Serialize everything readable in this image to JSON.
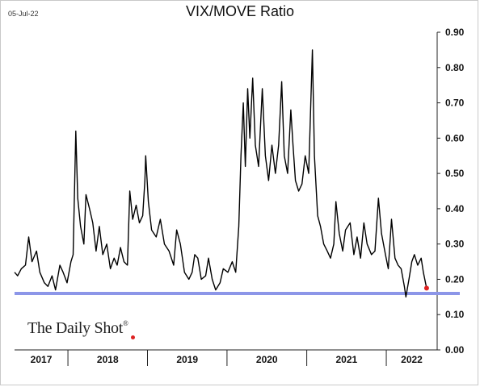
{
  "date_stamp": "05-Jul-22",
  "brand": {
    "text": "The Daily Shot",
    "mark": "®"
  },
  "chart_data": {
    "type": "line",
    "title": "VIX/MOVE Ratio",
    "xlabel": "",
    "ylabel": "",
    "ylim": [
      0,
      0.9
    ],
    "yticks": [
      0.0,
      0.1,
      0.2,
      0.3,
      0.4,
      0.5,
      0.6,
      0.7,
      0.8,
      0.9
    ],
    "ytick_labels": [
      "0.00",
      "0.10",
      "0.20",
      "0.30",
      "0.40",
      "0.50",
      "0.60",
      "0.70",
      "0.80",
      "0.90"
    ],
    "years": [
      "2017",
      "2018",
      "2019",
      "2020",
      "2021",
      "2022"
    ],
    "x_range": [
      "2017-05-01",
      "2022-07-05"
    ],
    "grid": false,
    "line_color": "#000000",
    "reference_line": {
      "value": 0.16,
      "color": "#8c96e8"
    },
    "last_point": {
      "date": "2022-07-05",
      "value": 0.175,
      "color": "#e02020"
    },
    "series": [
      {
        "values": [
          [
            "2017-05-01",
            0.22
          ],
          [
            "2017-05-15",
            0.21
          ],
          [
            "2017-06-01",
            0.23
          ],
          [
            "2017-06-20",
            0.24
          ],
          [
            "2017-07-05",
            0.32
          ],
          [
            "2017-07-20",
            0.25
          ],
          [
            "2017-08-10",
            0.28
          ],
          [
            "2017-08-25",
            0.22
          ],
          [
            "2017-09-15",
            0.19
          ],
          [
            "2017-10-01",
            0.18
          ],
          [
            "2017-10-20",
            0.21
          ],
          [
            "2017-11-05",
            0.17
          ],
          [
            "2017-11-25",
            0.24
          ],
          [
            "2017-12-10",
            0.22
          ],
          [
            "2017-12-28",
            0.19
          ],
          [
            "2018-01-15",
            0.25
          ],
          [
            "2018-01-25",
            0.27
          ],
          [
            "2018-02-06",
            0.62
          ],
          [
            "2018-02-15",
            0.43
          ],
          [
            "2018-02-28",
            0.35
          ],
          [
            "2018-03-15",
            0.3
          ],
          [
            "2018-03-25",
            0.44
          ],
          [
            "2018-04-10",
            0.4
          ],
          [
            "2018-04-25",
            0.36
          ],
          [
            "2018-05-10",
            0.28
          ],
          [
            "2018-05-25",
            0.35
          ],
          [
            "2018-06-10",
            0.27
          ],
          [
            "2018-06-28",
            0.3
          ],
          [
            "2018-07-15",
            0.23
          ],
          [
            "2018-08-01",
            0.26
          ],
          [
            "2018-08-15",
            0.24
          ],
          [
            "2018-08-30",
            0.29
          ],
          [
            "2018-09-15",
            0.25
          ],
          [
            "2018-10-01",
            0.24
          ],
          [
            "2018-10-12",
            0.45
          ],
          [
            "2018-10-25",
            0.37
          ],
          [
            "2018-11-10",
            0.41
          ],
          [
            "2018-11-25",
            0.36
          ],
          [
            "2018-12-10",
            0.38
          ],
          [
            "2018-12-20",
            0.48
          ],
          [
            "2018-12-24",
            0.55
          ],
          [
            "2019-01-05",
            0.42
          ],
          [
            "2019-01-20",
            0.34
          ],
          [
            "2019-02-10",
            0.32
          ],
          [
            "2019-03-01",
            0.37
          ],
          [
            "2019-03-20",
            0.3
          ],
          [
            "2019-04-10",
            0.28
          ],
          [
            "2019-05-01",
            0.24
          ],
          [
            "2019-05-15",
            0.34
          ],
          [
            "2019-06-01",
            0.3
          ],
          [
            "2019-06-20",
            0.22
          ],
          [
            "2019-07-10",
            0.2
          ],
          [
            "2019-07-25",
            0.22
          ],
          [
            "2019-08-06",
            0.27
          ],
          [
            "2019-08-20",
            0.26
          ],
          [
            "2019-09-05",
            0.2
          ],
          [
            "2019-09-25",
            0.21
          ],
          [
            "2019-10-08",
            0.26
          ],
          [
            "2019-10-25",
            0.2
          ],
          [
            "2019-11-10",
            0.17
          ],
          [
            "2019-11-30",
            0.19
          ],
          [
            "2019-12-15",
            0.23
          ],
          [
            "2020-01-05",
            0.22
          ],
          [
            "2020-01-25",
            0.25
          ],
          [
            "2020-02-10",
            0.22
          ],
          [
            "2020-02-24",
            0.35
          ],
          [
            "2020-03-05",
            0.55
          ],
          [
            "2020-03-16",
            0.7
          ],
          [
            "2020-03-25",
            0.52
          ],
          [
            "2020-04-05",
            0.74
          ],
          [
            "2020-04-15",
            0.6
          ],
          [
            "2020-04-28",
            0.77
          ],
          [
            "2020-05-10",
            0.58
          ],
          [
            "2020-05-25",
            0.52
          ],
          [
            "2020-06-11",
            0.74
          ],
          [
            "2020-06-25",
            0.55
          ],
          [
            "2020-07-10",
            0.48
          ],
          [
            "2020-07-25",
            0.58
          ],
          [
            "2020-08-10",
            0.5
          ],
          [
            "2020-08-25",
            0.58
          ],
          [
            "2020-09-08",
            0.76
          ],
          [
            "2020-09-20",
            0.55
          ],
          [
            "2020-10-05",
            0.5
          ],
          [
            "2020-10-20",
            0.68
          ],
          [
            "2020-10-30",
            0.58
          ],
          [
            "2020-11-10",
            0.48
          ],
          [
            "2020-11-25",
            0.45
          ],
          [
            "2020-12-10",
            0.47
          ],
          [
            "2020-12-25",
            0.55
          ],
          [
            "2021-01-10",
            0.5
          ],
          [
            "2021-01-27",
            0.85
          ],
          [
            "2021-02-05",
            0.55
          ],
          [
            "2021-02-20",
            0.38
          ],
          [
            "2021-03-05",
            0.35
          ],
          [
            "2021-03-20",
            0.3
          ],
          [
            "2021-04-05",
            0.28
          ],
          [
            "2021-04-20",
            0.26
          ],
          [
            "2021-05-05",
            0.3
          ],
          [
            "2021-05-15",
            0.42
          ],
          [
            "2021-05-30",
            0.33
          ],
          [
            "2021-06-15",
            0.28
          ],
          [
            "2021-06-28",
            0.34
          ],
          [
            "2021-07-19",
            0.36
          ],
          [
            "2021-08-05",
            0.27
          ],
          [
            "2021-08-20",
            0.32
          ],
          [
            "2021-09-05",
            0.26
          ],
          [
            "2021-09-20",
            0.36
          ],
          [
            "2021-10-05",
            0.3
          ],
          [
            "2021-10-25",
            0.27
          ],
          [
            "2021-11-10",
            0.28
          ],
          [
            "2021-11-26",
            0.43
          ],
          [
            "2021-12-10",
            0.33
          ],
          [
            "2021-12-28",
            0.27
          ],
          [
            "2022-01-10",
            0.23
          ],
          [
            "2022-01-25",
            0.37
          ],
          [
            "2022-02-10",
            0.26
          ],
          [
            "2022-02-24",
            0.24
          ],
          [
            "2022-03-10",
            0.23
          ],
          [
            "2022-03-25",
            0.18
          ],
          [
            "2022-04-01",
            0.15
          ],
          [
            "2022-04-15",
            0.2
          ],
          [
            "2022-04-28",
            0.25
          ],
          [
            "2022-05-10",
            0.27
          ],
          [
            "2022-05-25",
            0.24
          ],
          [
            "2022-06-10",
            0.26
          ],
          [
            "2022-06-20",
            0.22
          ],
          [
            "2022-07-05",
            0.175
          ]
        ]
      }
    ]
  }
}
